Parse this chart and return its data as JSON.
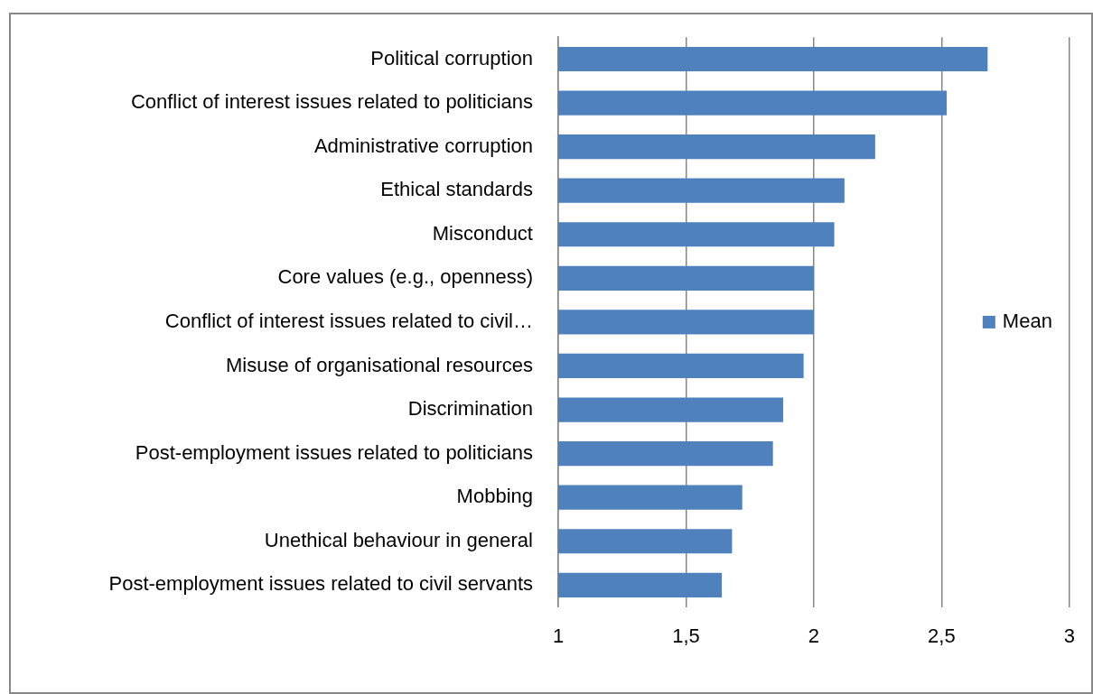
{
  "chart_data": {
    "type": "bar",
    "orientation": "horizontal",
    "categories": [
      "Political corruption",
      "Conflict of interest issues related to politicians",
      "Administrative corruption",
      "Ethical standards",
      "Misconduct",
      "Core values (e.g., openness)",
      "Conflict of interest issues related to civil…",
      "Misuse of organisational resources",
      "Discrimination",
      "Post-employment issues related to politicians",
      "Mobbing",
      "Unethical behaviour in general",
      "Post-employment issues related to civil servants"
    ],
    "series": [
      {
        "name": "Mean",
        "color": "#4f81bd",
        "values": [
          2.68,
          2.52,
          2.24,
          2.12,
          2.08,
          2.0,
          2.0,
          1.96,
          1.88,
          1.84,
          1.72,
          1.68,
          1.64
        ]
      }
    ],
    "xlim": [
      1,
      3
    ],
    "xticks": [
      1,
      {
        "value": 1.5,
        "label": "1,5"
      },
      2,
      {
        "value": 2.5,
        "label": "2,5"
      },
      3
    ],
    "grid": "x",
    "legend": "right"
  }
}
